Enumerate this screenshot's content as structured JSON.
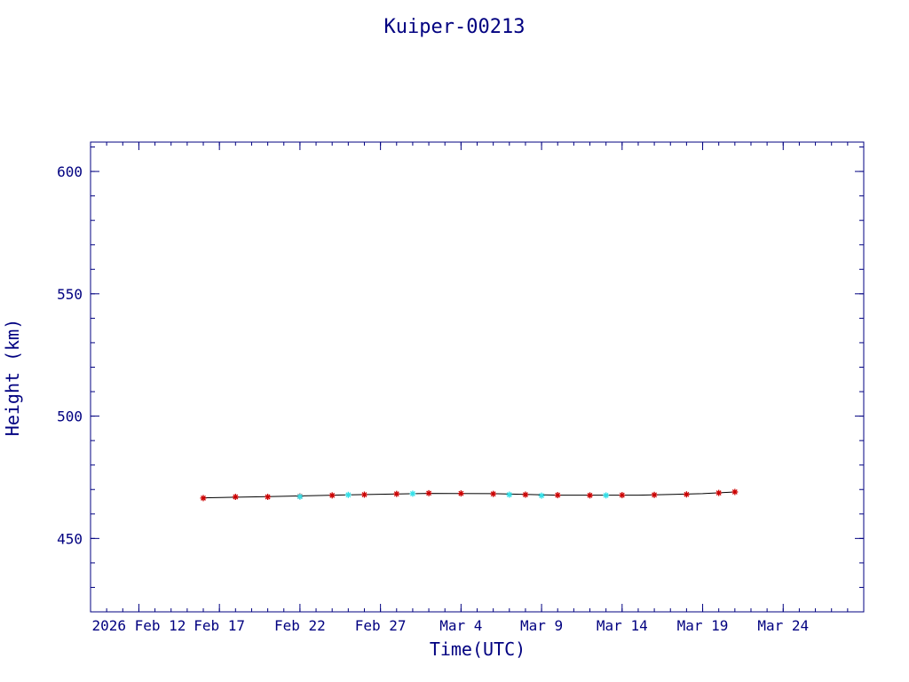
{
  "colors": {
    "axis": "#000080",
    "line": "#000000",
    "marker_primary": "#cc0000",
    "marker_secondary": "#33e0e8"
  },
  "chart_data": {
    "type": "scatter",
    "title": "Kuiper-00213",
    "xlabel": "Time(UTC)",
    "ylabel": "Height (km)",
    "x_is_date": true,
    "xlim": [
      "2026-02-09",
      "2026-03-29"
    ],
    "ylim": [
      420,
      612
    ],
    "x_ticks": [
      {
        "date": "2026-02-12",
        "label": "2026 Feb 12"
      },
      {
        "date": "2026-02-17",
        "label": "Feb 17"
      },
      {
        "date": "2026-02-22",
        "label": "Feb 22"
      },
      {
        "date": "2026-02-27",
        "label": "Feb 27"
      },
      {
        "date": "2026-03-04",
        "label": "Mar  4"
      },
      {
        "date": "2026-03-09",
        "label": "Mar  9"
      },
      {
        "date": "2026-03-14",
        "label": "Mar 14"
      },
      {
        "date": "2026-03-19",
        "label": "Mar 19"
      },
      {
        "date": "2026-03-24",
        "label": "Mar 24"
      }
    ],
    "y_ticks": [
      450,
      500,
      550,
      600
    ],
    "grid": false,
    "series": [
      {
        "marker": "star",
        "color": "#cc0000",
        "x": [
          "2026-02-16",
          "2026-02-18",
          "2026-02-20",
          "2026-02-22",
          "2026-02-24",
          "2026-02-26",
          "2026-02-28",
          "2026-03-02",
          "2026-03-04",
          "2026-03-06",
          "2026-03-08",
          "2026-03-10",
          "2026-03-12",
          "2026-03-14",
          "2026-03-16",
          "2026-03-18",
          "2026-03-20",
          "2026-03-21"
        ],
        "y": [
          466.5,
          467.0,
          467.0,
          467.2,
          467.6,
          467.9,
          468.2,
          468.5,
          468.4,
          468.2,
          467.9,
          467.7,
          467.6,
          467.7,
          467.8,
          468.0,
          468.6,
          469.0
        ]
      },
      {
        "marker": "star",
        "color": "#33e0e8",
        "x": [
          "2026-02-22",
          "2026-02-25",
          "2026-03-01",
          "2026-03-07",
          "2026-03-09",
          "2026-03-13"
        ],
        "y": [
          467.1,
          467.8,
          468.3,
          467.9,
          467.5,
          467.6
        ]
      }
    ],
    "trend": {
      "x": [
        "2026-02-16",
        "2026-02-20",
        "2026-02-25",
        "2026-03-02",
        "2026-03-06",
        "2026-03-10",
        "2026-03-15",
        "2026-03-19",
        "2026-03-21"
      ],
      "y": [
        466.6,
        467.1,
        467.8,
        468.4,
        468.3,
        467.7,
        467.7,
        468.3,
        469.0
      ]
    }
  }
}
